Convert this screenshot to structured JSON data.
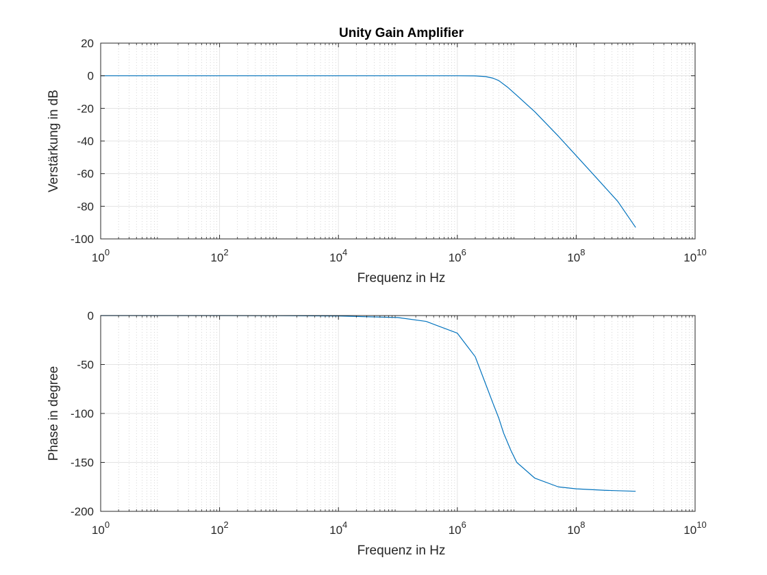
{
  "chart_data": [
    {
      "type": "line",
      "title": "Unity Gain Amplifier",
      "xlabel": "Frequenz in Hz",
      "ylabel": "Verstärkung in dB",
      "xscale": "log",
      "xlim": [
        1,
        10000000000
      ],
      "ylim": [
        -100,
        20
      ],
      "grid": true,
      "x_ticks": [
        {
          "value": 1,
          "base": "10",
          "exp": "0"
        },
        {
          "value": 100,
          "base": "10",
          "exp": "2"
        },
        {
          "value": 10000,
          "base": "10",
          "exp": "4"
        },
        {
          "value": 1000000,
          "base": "10",
          "exp": "6"
        },
        {
          "value": 100000000,
          "base": "10",
          "exp": "8"
        },
        {
          "value": 10000000000,
          "base": "10",
          "exp": "10"
        }
      ],
      "y_ticks": [
        20,
        0,
        -20,
        -40,
        -60,
        -80,
        -100
      ],
      "line_color": "#0072bd",
      "x": [
        1,
        10,
        100,
        1000,
        10000,
        100000,
        1000000,
        2000000,
        3000000,
        4000000,
        5000000,
        7000000,
        10000000,
        20000000,
        50000000,
        100000000,
        200000000,
        500000000,
        1000000000
      ],
      "y": [
        0,
        0,
        0,
        0,
        0,
        0,
        0,
        -0.1,
        -0.5,
        -1.5,
        -3,
        -7,
        -12,
        -22,
        -37,
        -49,
        -61,
        -77,
        -93
      ]
    },
    {
      "type": "line",
      "title": "",
      "xlabel": "Frequenz in Hz",
      "ylabel": "Phase in degree",
      "xscale": "log",
      "xlim": [
        1,
        10000000000
      ],
      "ylim": [
        -200,
        0
      ],
      "grid": true,
      "x_ticks": [
        {
          "value": 1,
          "base": "10",
          "exp": "0"
        },
        {
          "value": 100,
          "base": "10",
          "exp": "2"
        },
        {
          "value": 10000,
          "base": "10",
          "exp": "4"
        },
        {
          "value": 1000000,
          "base": "10",
          "exp": "6"
        },
        {
          "value": 100000000,
          "base": "10",
          "exp": "8"
        },
        {
          "value": 10000000000,
          "base": "10",
          "exp": "10"
        }
      ],
      "y_ticks": [
        0,
        -50,
        -100,
        -150,
        -200
      ],
      "line_color": "#0072bd",
      "x": [
        1,
        10,
        100,
        1000,
        10000,
        100000,
        300000,
        1000000,
        2000000,
        3000000,
        4000000,
        5000000,
        6000000,
        8000000,
        10000000,
        20000000,
        50000000,
        100000000,
        300000000,
        1000000000
      ],
      "y": [
        0,
        0,
        0,
        -0.1,
        -0.5,
        -2,
        -6,
        -18,
        -42,
        -70,
        -90,
        -105,
        -120,
        -138,
        -150,
        -166,
        -175,
        -177,
        -178.5,
        -179.5
      ]
    }
  ]
}
